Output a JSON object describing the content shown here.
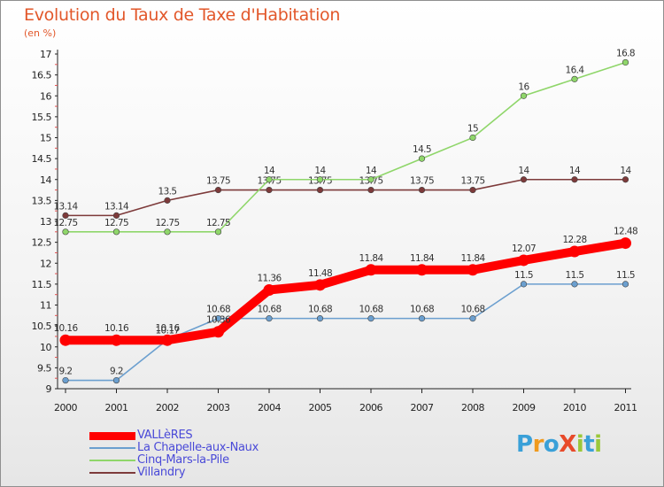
{
  "header": {
    "title": "Evolution du Taux de Taxe d'Habitation",
    "subtitle": "(en %)"
  },
  "chart_data": {
    "type": "line",
    "title": "Evolution du Taux de Taxe d'Habitation",
    "subtitle": "(en %)",
    "xlabel": "",
    "ylabel": "",
    "categories": [
      "2000",
      "2001",
      "2002",
      "2003",
      "2004",
      "2005",
      "2006",
      "2007",
      "2008",
      "2009",
      "2010",
      "2011"
    ],
    "ylim": [
      9,
      17
    ],
    "yticks": [
      "9",
      "9.5",
      "10",
      "10.5",
      "11",
      "11.5",
      "12",
      "12.5",
      "13",
      "13.5",
      "14",
      "14.5",
      "15",
      "15.5",
      "16",
      "16.5",
      "17"
    ],
    "grid": "none",
    "legend_position": "bottom-left",
    "series": [
      {
        "name": "VALLèRES",
        "color": "#ff0000",
        "values": [
          10.16,
          10.16,
          10.16,
          10.36,
          11.36,
          11.48,
          11.84,
          11.84,
          11.84,
          12.07,
          12.28,
          12.48
        ],
        "labels": [
          "10.16",
          "10.16",
          "10.16",
          "10.36",
          "11.36",
          "11.48",
          "11.84",
          "11.84",
          "11.84",
          "12.07",
          "12.28",
          "12.48"
        ]
      },
      {
        "name": "La Chapelle-aux-Naux",
        "color": "#6b9fcf",
        "values": [
          9.2,
          9.2,
          10.17,
          10.68,
          10.68,
          10.68,
          10.68,
          10.68,
          10.68,
          11.5,
          11.5,
          11.5
        ],
        "labels": [
          "9.2",
          "9.2",
          "10.17",
          "10.68",
          "10.68",
          "10.68",
          "10.68",
          "10.68",
          "10.68",
          "11.5",
          "11.5",
          "11.5"
        ]
      },
      {
        "name": "Cinq-Mars-la-Pile",
        "color": "#8fd66a",
        "values": [
          12.75,
          12.75,
          12.75,
          12.75,
          14,
          14,
          14,
          14.5,
          15,
          16,
          16.4,
          16.8
        ],
        "labels": [
          "12.75",
          "12.75",
          "12.75",
          "12.75",
          "14",
          "14",
          "14",
          "14.5",
          "15",
          "16",
          "16.4",
          "16.8"
        ]
      },
      {
        "name": "Villandry",
        "color": "#7d3a3a",
        "values": [
          13.14,
          13.14,
          13.5,
          13.75,
          13.75,
          13.75,
          13.75,
          13.75,
          13.75,
          14,
          14,
          14
        ],
        "labels": [
          "13.14",
          "13.14",
          "13.5",
          "13.75",
          "13.75",
          "13.75",
          "13.75",
          "13.75",
          "13.75",
          "14",
          "14",
          "14"
        ]
      }
    ]
  },
  "brand": {
    "text": "ProXiti",
    "letters": [
      "P",
      "r",
      "o",
      "X",
      "i",
      "t",
      "i"
    ],
    "colors": [
      "#3aa0d8",
      "#f09a1e",
      "#3aa0d8",
      "#e84a2a",
      "#9bc83a",
      "#3aa0d8",
      "#9bc83a"
    ]
  }
}
